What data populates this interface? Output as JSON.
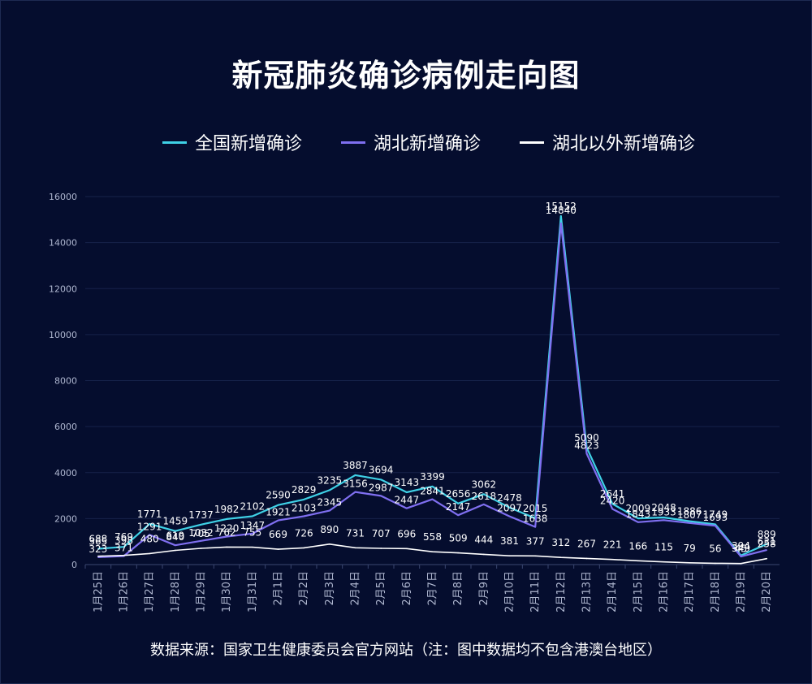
{
  "title": "新冠肺炎确诊病例走向图",
  "source": "数据来源：国家卫生健康委员会官方网站（注：图中数据均不包含港澳台地区）",
  "colors": {
    "background": "#050d2e",
    "national": "#3fd1e6",
    "hubei": "#7f6ff0",
    "outside": "#ffffff",
    "grid": "#16224a"
  },
  "chart_data": {
    "type": "line",
    "title": "新冠肺炎确诊病例走向图",
    "xlabel": "",
    "ylabel": "",
    "ylim": [
      0,
      16000
    ],
    "yticks": [
      0,
      2000,
      4000,
      6000,
      8000,
      10000,
      12000,
      14000,
      16000
    ],
    "grid": true,
    "legend_position": "top",
    "categories": [
      "1月25日",
      "1月26日",
      "1月27日",
      "1月28日",
      "1月29日",
      "1月30日",
      "1月31日",
      "2月1日",
      "2月2日",
      "2月3日",
      "2月4日",
      "2月5日",
      "2月6日",
      "2月7日",
      "2月8日",
      "2月9日",
      "2月10日",
      "2月11日",
      "2月12日",
      "2月13日",
      "2月14日",
      "2月15日",
      "2月16日",
      "2月17日",
      "2月18日",
      "2月19日",
      "2月20日"
    ],
    "series": [
      {
        "name": "全国新增确诊",
        "color": "#3fd1e6",
        "values": [
          688,
          769,
          1771,
          1459,
          1737,
          1982,
          2102,
          2590,
          2829,
          3235,
          3887,
          3694,
          3143,
          3399,
          2656,
          3062,
          2478,
          2015,
          15152,
          5090,
          2641,
          2009,
          2048,
          1886,
          1749,
          394,
          889
        ]
      },
      {
        "name": "湖北新增确诊",
        "color": "#7f6ff0",
        "values": [
          323,
          371,
          1291,
          840,
          1032,
          1220,
          1347,
          1921,
          2103,
          2345,
          3156,
          2987,
          2447,
          2841,
          2147,
          2618,
          2097,
          1638,
          14840,
          4823,
          2420,
          1843,
          1933,
          1807,
          1693,
          349,
          631
        ]
      },
      {
        "name": "湖北以外新增确诊",
        "color": "#ffffff",
        "values": [
          365,
          398,
          480,
          619,
          705,
          762,
          755,
          669,
          726,
          890,
          731,
          707,
          696,
          558,
          509,
          444,
          381,
          377,
          312,
          267,
          221,
          166,
          115,
          79,
          56,
          45,
          258
        ]
      }
    ]
  }
}
